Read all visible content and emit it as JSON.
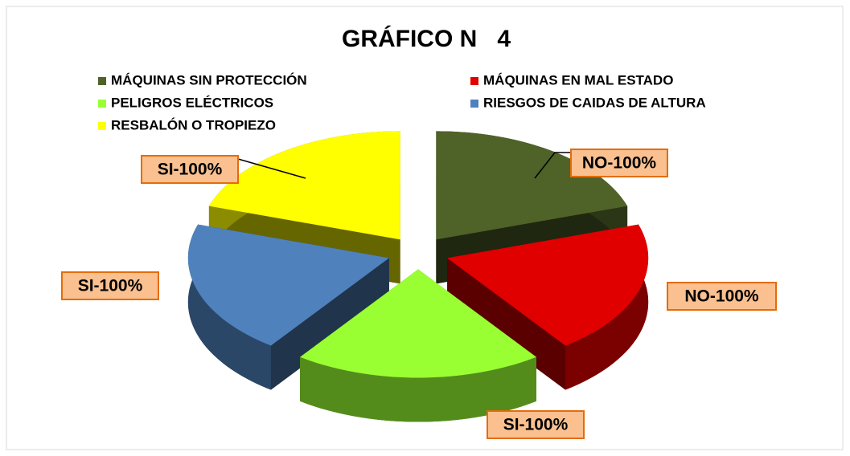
{
  "chart_data": {
    "type": "pie",
    "title": "GRÁFICO N   4",
    "categories": [
      "MÁQUINAS SIN PROTECCIÓN",
      "MÁQUINAS EN MAL ESTADO",
      "PELIGROS ELÉCTRICOS",
      "RIESGOS DE CAIDAS DE ALTURA",
      "RESBALÓN O TROPIEZO"
    ],
    "values": [
      100,
      100,
      100,
      100,
      100
    ],
    "value_labels": [
      "NO-100%",
      "NO-100%",
      "SI-100%",
      "SI-100%",
      "SI-100%"
    ],
    "colors": [
      "#4f6228",
      "#e00000",
      "#99ff33",
      "#4f81bd",
      "#ffff00"
    ],
    "legend": "top"
  }
}
